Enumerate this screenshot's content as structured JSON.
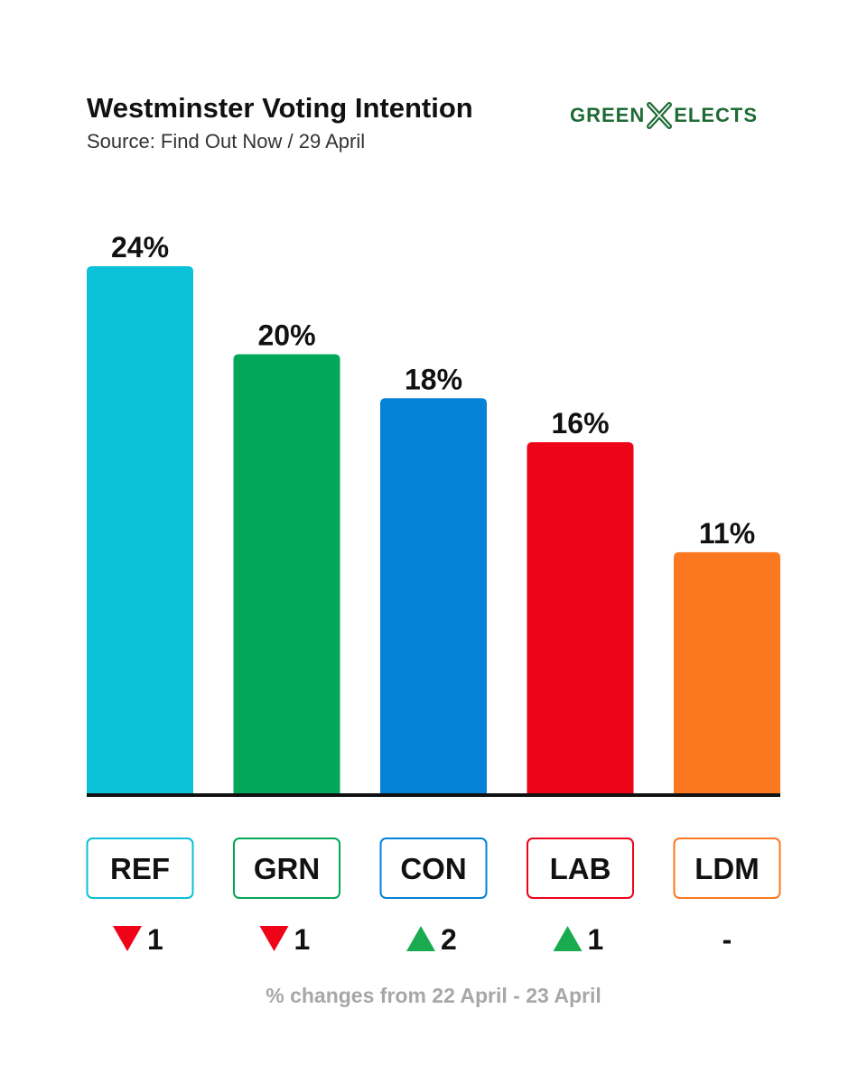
{
  "header": {
    "title": "Westminster Voting Intention",
    "subtitle": "Source: Find Out Now / 29 April"
  },
  "logo": {
    "left_text": "GREEN",
    "right_text": "ELECTS",
    "color": "#1e6b34"
  },
  "chart_data": {
    "type": "bar",
    "title": "Westminster Voting Intention",
    "subtitle": "Source: Find Out Now / 29 April",
    "categories": [
      "REF",
      "GRN",
      "CON",
      "LAB",
      "LDM"
    ],
    "values": [
      24,
      20,
      18,
      16,
      11
    ],
    "value_labels": [
      "24%",
      "20%",
      "18%",
      "16%",
      "11%"
    ],
    "colors": [
      "#0bc0d9",
      "#03a75a",
      "#0382d8",
      "#ee0319",
      "#fb7821"
    ],
    "changes": [
      {
        "direction": "down",
        "text": "1"
      },
      {
        "direction": "down",
        "text": "1"
      },
      {
        "direction": "up",
        "text": "2"
      },
      {
        "direction": "up",
        "text": "1"
      },
      {
        "direction": "none",
        "text": "-"
      }
    ],
    "change_colors": {
      "up": "#1aaa4f",
      "down": "#ee0319"
    },
    "ylim": [
      0,
      24
    ],
    "grid": false,
    "legend": "none",
    "footnote": "% changes from 22 April - 23 April"
  }
}
